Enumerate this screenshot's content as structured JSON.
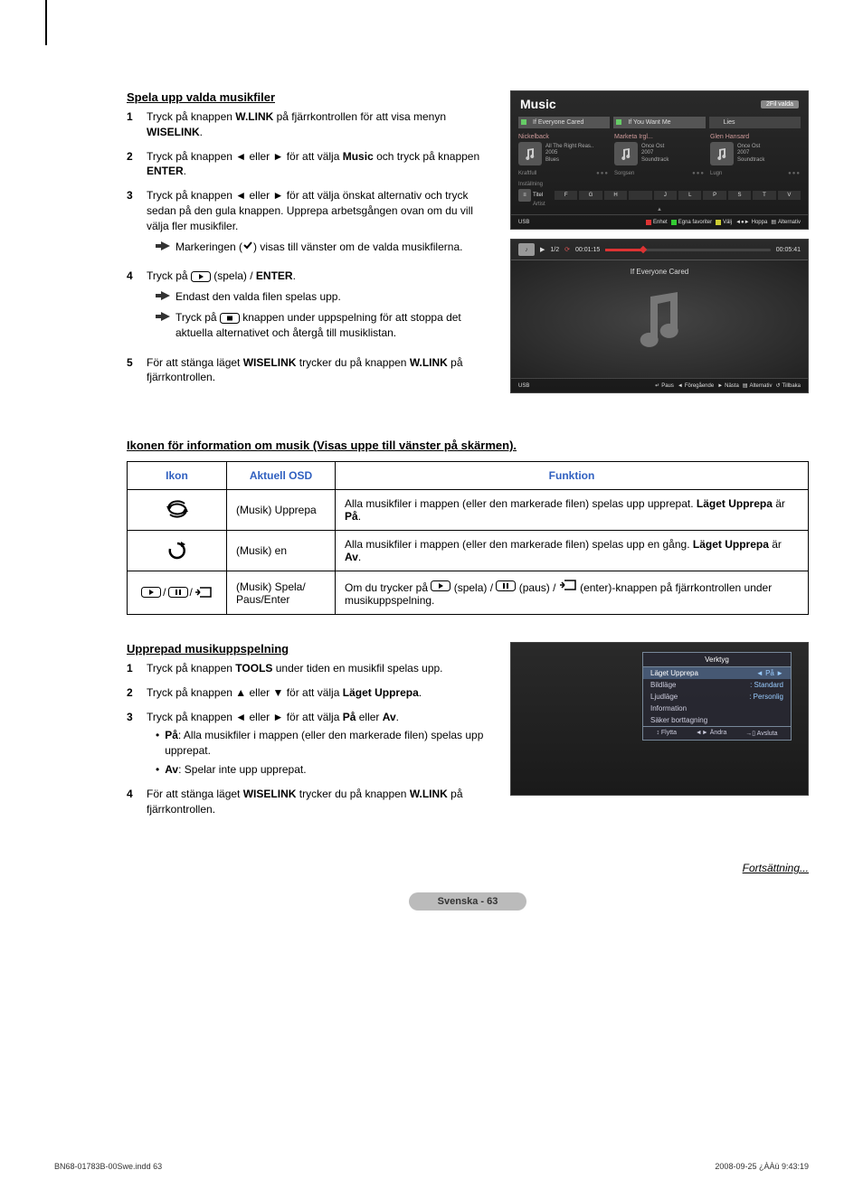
{
  "section1": {
    "title": "Spela upp valda musikfiler",
    "steps": [
      {
        "num": "1",
        "html": "Tryck på knappen <b>W.LINK</b> på fjärrkontrollen för att visa menyn <b>WISELINK</b>."
      },
      {
        "num": "2",
        "html": "Tryck på knappen ◄ eller ► för att välja <b>Music</b> och tryck på knappen <b>ENTER</b>."
      },
      {
        "num": "3",
        "html": "Tryck på knappen ◄ eller ► för att välja önskat alternativ och tryck sedan på den gula knappen. Upprepa arbetsgången ovan om du vill välja fler musikfiler.",
        "note": "Markeringen (✔) visas till vänster om de valda musikfilerna."
      },
      {
        "num": "4",
        "html": "Tryck på <span class='inline-icon'>__PLAY__</span> (spela) / <b>ENTER</b>.",
        "note1": "Endast den valda filen spelas upp.",
        "note2": "Tryck på <span class='inline-icon'>__STOP__</span> knappen under uppspelning för att stoppa det aktuella alternativet och återgå till musiklistan."
      },
      {
        "num": "5",
        "html": "För att stänga läget <b>WISELINK</b> trycker du på knappen <b>W.LINK</b> på fjärrkontrollen."
      }
    ]
  },
  "music_mock": {
    "title": "Music",
    "selected_badge": "2Fil valda",
    "tabs": [
      "If Everyone Cared",
      "If You Want Me",
      "Lies"
    ],
    "items": [
      {
        "artist": "Nickelback",
        "l1": "All The Right Reas..",
        "l2": "2005",
        "l3": "Blues"
      },
      {
        "artist": "Marketa Irgl...",
        "l1": "Once Ost",
        "l2": "2007",
        "l3": "Soundtrack"
      },
      {
        "artist": "Glen Hansard",
        "l1": "Once Ost",
        "l2": "2007",
        "l3": "Soundtrack"
      }
    ],
    "moods": [
      "Kraftfull",
      "Sorgsen",
      "Lugn"
    ],
    "sort_label": "Inställning",
    "sort_keys": [
      "Titel",
      "Artist"
    ],
    "alpha": [
      "F",
      "G",
      "H",
      "",
      "J",
      "L",
      "P",
      "S",
      "T",
      "V"
    ],
    "footer_source": "USB",
    "footer": [
      {
        "color": "#d33",
        "label": "Enhet"
      },
      {
        "color": "#3c3",
        "label": "Egna favoriter"
      },
      {
        "color": "#cc3",
        "label": "Välj"
      },
      {
        "icon": "◄●►",
        "label": "Hoppa"
      },
      {
        "icon": "▤",
        "label": "Alternativ"
      }
    ]
  },
  "player_mock": {
    "counter": "1/2",
    "repeat_icon": "⟳",
    "elapsed": "00:01:15",
    "total": "00:05:41",
    "progress_pct": 23,
    "track": "If Everyone Cared",
    "footer_source": "USB",
    "footer": [
      {
        "icon": "↵",
        "label": "Paus"
      },
      {
        "icon": "◄",
        "label": "Föregående"
      },
      {
        "icon": "►",
        "label": "Nästa"
      },
      {
        "icon": "▤",
        "label": "Alternativ"
      },
      {
        "icon": "↺",
        "label": "Tillbaka"
      }
    ]
  },
  "section2": {
    "title": "Ikonen för information om musik (Visas uppe till vänster på skärmen).",
    "headers": [
      "Ikon",
      "Aktuell OSD",
      "Funktion"
    ],
    "rows": [
      {
        "icon": "repeat-all",
        "osd": "(Musik) Upprepa",
        "html": "Alla musikfiler i mappen (eller den markerade filen) spelas upp upprepat. <b>Läget Upprepa</b> är <b>På</b>."
      },
      {
        "icon": "repeat-one",
        "osd": "(Musik) en",
        "html": "Alla musikfiler i mappen (eller den markerade filen) spelas upp en gång. <b>Läget Upprepa</b> är <b>Av</b>."
      },
      {
        "icon": "play-pause-enter",
        "osd": "(Musik) Spela/ Paus/Enter",
        "html": "Om du trycker på __PLAY__ (spela) / __PAUSE__ (paus) / __ENTER__ (enter)-knappen på fjärrkontrollen under musikuppspelning."
      }
    ]
  },
  "section3": {
    "title": "Upprepad musikuppspelning",
    "steps": [
      {
        "num": "1",
        "html": "Tryck på knappen <b>TOOLS</b> under tiden en musikfil spelas upp."
      },
      {
        "num": "2",
        "html": "Tryck på knappen ▲ eller ▼ för att välja <b>Läget Upprepa</b>."
      },
      {
        "num": "3",
        "html": "Tryck på knappen ◄ eller ► för att välja <b>På</b> eller <b>Av</b>.",
        "bullets": [
          "<b>På</b>: Alla musikfiler i mappen (eller den markerade filen) spelas upp upprepat.",
          "<b>Av</b>: Spelar inte upp upprepat."
        ]
      },
      {
        "num": "4",
        "html": "För att stänga läget <b>WISELINK</b> trycker du på knappen <b>W.LINK</b> på fjärrkontrollen."
      }
    ]
  },
  "tools_mock": {
    "title": "Verktyg",
    "rows": [
      {
        "label": "Läget Upprepa",
        "val": "◄    På    ►",
        "hl": true
      },
      {
        "label": "Bildläge",
        "val": ":   Standard"
      },
      {
        "label": "Ljudläge",
        "val": ":   Personlig"
      },
      {
        "label": "Information",
        "val": ""
      },
      {
        "label": "Säker borttagning",
        "val": ""
      }
    ],
    "footer": [
      {
        "icon": "↕",
        "label": "Flytta"
      },
      {
        "icon": "◄►",
        "label": "Ändra"
      },
      {
        "icon": "→▯",
        "label": "Avsluta"
      }
    ]
  },
  "continue": "Fortsättning...",
  "page_badge": "Svenska - 63",
  "doc_footer_left": "BN68-01783B-00Swe.indd   63",
  "doc_footer_right": "2008-09-25   ¿ÀÀü 9:43:19"
}
